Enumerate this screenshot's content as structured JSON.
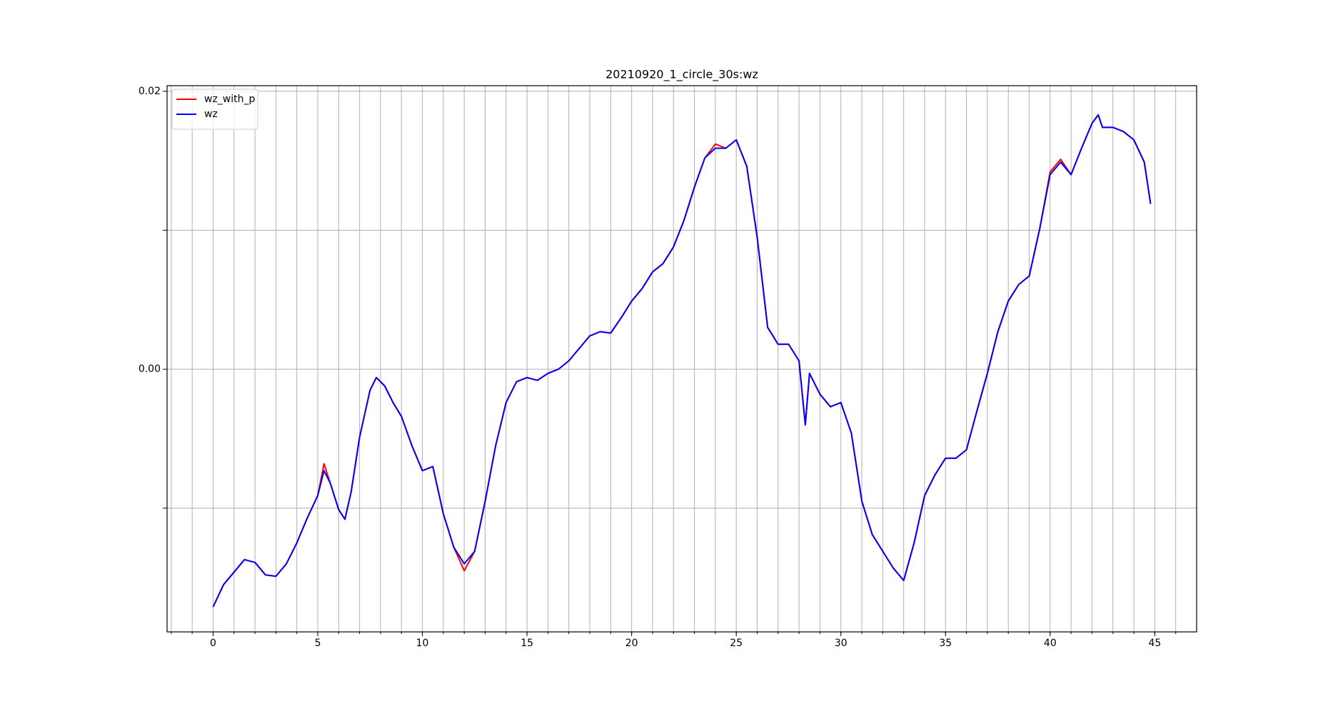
{
  "chart_data": {
    "type": "line",
    "title": "20210920_1_circle_30s:wz",
    "x": [
      0,
      0.5,
      1,
      1.5,
      2,
      2.5,
      3,
      3.5,
      4,
      4.5,
      5,
      5.3,
      5.6,
      6,
      6.3,
      6.6,
      7,
      7.5,
      7.8,
      8.2,
      8.6,
      9,
      9.5,
      10,
      10.5,
      11,
      11.5,
      12,
      12.5,
      13,
      13.5,
      14,
      14.5,
      15,
      15.5,
      16,
      16.5,
      17,
      17.5,
      18,
      18.5,
      19,
      19.5,
      20,
      20.5,
      21,
      21.5,
      22,
      22.5,
      23,
      23.5,
      24,
      24.5,
      25,
      25.5,
      26,
      26.5,
      27,
      27.5,
      28,
      28.3,
      28.5,
      29,
      29.5,
      30,
      30.5,
      31,
      31.5,
      32,
      32.5,
      33,
      33.5,
      34,
      34.5,
      35,
      35.5,
      36,
      36.5,
      37,
      37.5,
      38,
      38.5,
      39,
      39.5,
      40,
      40.5,
      41,
      41.5,
      42,
      42.3,
      42.5,
      43,
      43.5,
      44,
      44.5,
      44.8
    ],
    "series": [
      {
        "name": "wz_with_p",
        "color": "#ff0000",
        "values": [
          -0.0171,
          -0.0155,
          -0.0146,
          -0.0137,
          -0.0139,
          -0.0148,
          -0.0149,
          -0.014,
          -0.0125,
          -0.0107,
          -0.0091,
          -0.0068,
          -0.0082,
          -0.0101,
          -0.0108,
          -0.0088,
          -0.0049,
          -0.0015,
          -0.0006,
          -0.0012,
          -0.0024,
          -0.0034,
          -0.0055,
          -0.0073,
          -0.007,
          -0.0104,
          -0.0128,
          -0.0145,
          -0.0131,
          -0.0095,
          -0.0055,
          -0.0024,
          -0.0009,
          -0.0006,
          -0.0008,
          -0.0003,
          0.0,
          0.0006,
          0.0015,
          0.0024,
          0.0027,
          0.0026,
          0.0037,
          0.0049,
          0.0058,
          0.007,
          0.0076,
          0.0088,
          0.0107,
          0.0131,
          0.0152,
          0.0162,
          0.0159,
          0.0165,
          0.0146,
          0.0095,
          0.003,
          0.0018,
          0.0018,
          0.0006,
          -0.004,
          -0.0003,
          -0.0018,
          -0.0027,
          -0.0024,
          -0.0046,
          -0.0095,
          -0.0119,
          -0.0131,
          -0.0143,
          -0.0152,
          -0.0125,
          -0.0091,
          -0.0076,
          -0.0064,
          -0.0064,
          -0.0058,
          -0.003,
          -0.0003,
          0.0027,
          0.0049,
          0.0061,
          0.0067,
          0.0101,
          0.0142,
          0.0151,
          0.014,
          0.0159,
          0.0177,
          0.0183,
          0.0174,
          0.0174,
          0.0171,
          0.0165,
          0.0149,
          0.0119
        ]
      },
      {
        "name": "wz",
        "color": "#0000ff",
        "values": [
          -0.0171,
          -0.0155,
          -0.0146,
          -0.0137,
          -0.0139,
          -0.0148,
          -0.0149,
          -0.014,
          -0.0125,
          -0.0107,
          -0.0091,
          -0.0073,
          -0.0082,
          -0.0101,
          -0.0108,
          -0.0088,
          -0.0049,
          -0.0015,
          -0.0006,
          -0.0012,
          -0.0024,
          -0.0034,
          -0.0055,
          -0.0073,
          -0.007,
          -0.0104,
          -0.0128,
          -0.014,
          -0.0131,
          -0.0095,
          -0.0055,
          -0.0024,
          -0.0009,
          -0.0006,
          -0.0008,
          -0.0003,
          0.0,
          0.0006,
          0.0015,
          0.0024,
          0.0027,
          0.0026,
          0.0037,
          0.0049,
          0.0058,
          0.007,
          0.0076,
          0.0088,
          0.0107,
          0.0131,
          0.0152,
          0.0159,
          0.0159,
          0.0165,
          0.0146,
          0.0095,
          0.003,
          0.0018,
          0.0018,
          0.0006,
          -0.004,
          -0.0003,
          -0.0018,
          -0.0027,
          -0.0024,
          -0.0046,
          -0.0095,
          -0.0119,
          -0.0131,
          -0.0143,
          -0.0152,
          -0.0125,
          -0.0091,
          -0.0076,
          -0.0064,
          -0.0064,
          -0.0058,
          -0.003,
          -0.0003,
          0.0027,
          0.0049,
          0.0061,
          0.0067,
          0.0101,
          0.014,
          0.0149,
          0.014,
          0.0159,
          0.0177,
          0.0183,
          0.0174,
          0.0174,
          0.0171,
          0.0165,
          0.0149,
          0.0119
        ]
      }
    ],
    "xlim": [
      -2.2,
      47.0
    ],
    "xticks": [
      0,
      5,
      10,
      15,
      20,
      25,
      30,
      35,
      40,
      45
    ],
    "xminor_ticks": [
      -2,
      -1,
      0,
      1,
      2,
      3,
      4,
      5,
      6,
      7,
      8,
      9,
      10,
      11,
      12,
      13,
      14,
      15,
      16,
      17,
      18,
      19,
      20,
      21,
      22,
      23,
      24,
      25,
      26,
      27,
      28,
      29,
      30,
      31,
      32,
      33,
      34,
      35,
      36,
      37,
      38,
      39,
      40,
      41,
      42,
      43,
      44,
      45,
      46
    ],
    "ylim": [
      -0.0189,
      0.0204
    ],
    "yticks": [
      {
        "value": -0.01,
        "label": null
      },
      {
        "value": 0,
        "label": "0.00"
      },
      {
        "value": 0.01,
        "label": null
      },
      {
        "value": 0.02,
        "label": "0.02"
      }
    ],
    "grid": true,
    "legend": "upper left"
  }
}
